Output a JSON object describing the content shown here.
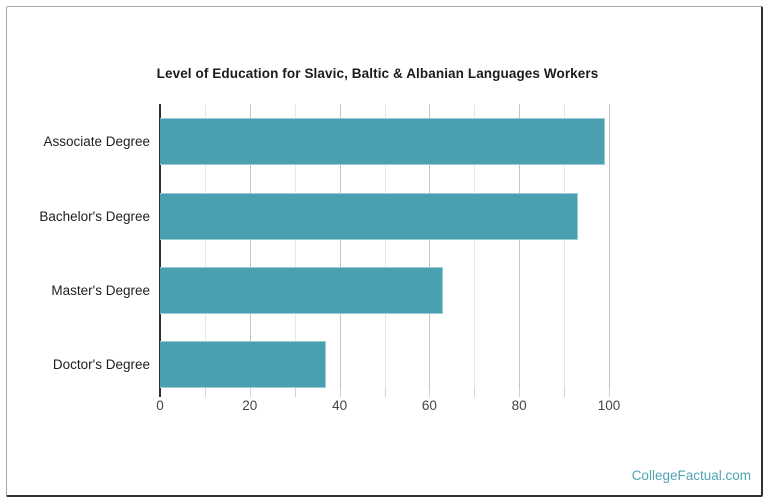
{
  "chart_data": {
    "type": "bar",
    "orientation": "horizontal",
    "title": "Level of Education for Slavic, Baltic & Albanian Languages Workers",
    "categories": [
      "Associate Degree",
      "Bachelor's Degree",
      "Master's Degree",
      "Doctor's Degree"
    ],
    "values": [
      99,
      93,
      63,
      37
    ],
    "xlabel": "",
    "ylabel": "",
    "xlim": [
      0,
      100
    ],
    "x_major_ticks": [
      0,
      20,
      40,
      60,
      80,
      100
    ],
    "x_minor_step": 10,
    "grid": true,
    "legend": "none",
    "style": {
      "bar_color": "#4aa0b0",
      "major_gridline_color": "#c4c4c4",
      "minor_gridline_color": "#e7e7e7",
      "axis_line_color": "#2e2e2e",
      "title_color": "#1b1b1b",
      "category_label_color": "#1f1f1f",
      "tick_label_color": "#454545"
    }
  },
  "watermark": {
    "text": "CollegeFactual.com",
    "color": "#4fa3b3"
  }
}
